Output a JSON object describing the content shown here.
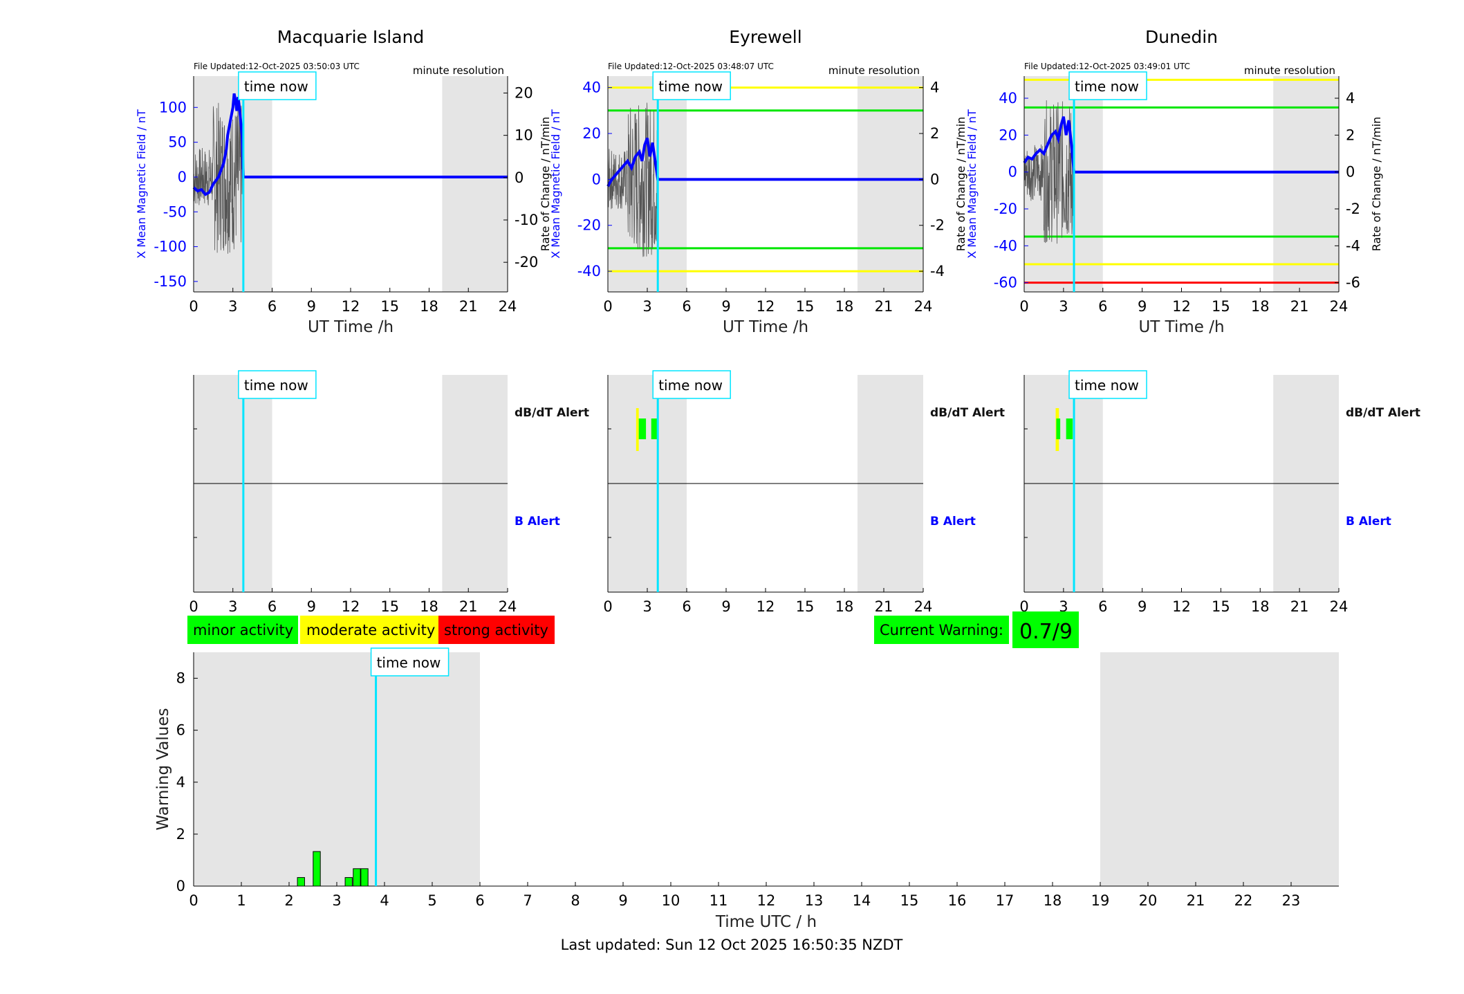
{
  "footer": {
    "last_updated": "Last updated: Sun 12 Oct 2025 16:50:35 NZDT"
  },
  "colors": {
    "x_field": "#0000ff",
    "rate_trace": "#555555",
    "now_line": "#00e5ff",
    "shade": "#e5e5e5",
    "minor": "#00ff00",
    "moderate": "#ffff00",
    "strong": "#ff0000"
  },
  "legend": {
    "minor": "minor activity",
    "moderate": "moderate activity",
    "strong": "strong activity"
  },
  "current_warning": {
    "label": "Current Warning:",
    "value": "0.7/9"
  },
  "chart_data": [
    {
      "type": "line",
      "title": "Macquarie Island",
      "file_updated": "File Updated:12-Oct-2025 03:50:03 UTC",
      "resolution": "minute resolution",
      "xlabel": "UT Time /h",
      "ylabel_left": "X Mean Magnetic Field / nT",
      "ylabel_right": "Rate of Change / nT/min",
      "xlim": [
        0,
        24
      ],
      "ylim_left": [
        -165,
        145
      ],
      "ylim_right": [
        -27,
        24
      ],
      "xticks": [
        0,
        3,
        6,
        9,
        12,
        15,
        18,
        21,
        24
      ],
      "yticks_left": [
        -150,
        -100,
        -50,
        0,
        50,
        100
      ],
      "yticks_right": [
        -20,
        -10,
        0,
        10,
        20
      ],
      "shaded": [
        [
          0,
          6
        ],
        [
          19,
          24
        ]
      ],
      "time_now": 3.8,
      "time_now_label": "time now",
      "thresholds": [],
      "series": [
        {
          "x": [
            0,
            0.3,
            0.6,
            0.9,
            1.2,
            1.5,
            1.7,
            1.9,
            2.1,
            2.3,
            2.5,
            2.6,
            2.7,
            2.8,
            2.9,
            3.0,
            3.1,
            3.2,
            3.3,
            3.4,
            3.5,
            3.6,
            3.7,
            3.8,
            4.2,
            24
          ],
          "y": [
            -15,
            -20,
            -18,
            -25,
            -22,
            -10,
            -5,
            0,
            10,
            20,
            40,
            60,
            70,
            80,
            90,
            100,
            120,
            110,
            95,
            115,
            100,
            80,
            60,
            0,
            0,
            0
          ]
        }
      ]
    },
    {
      "type": "line",
      "title": "Eyrewell",
      "file_updated": "File Updated:12-Oct-2025 03:48:07 UTC",
      "resolution": "minute resolution",
      "xlabel": "UT Time /h",
      "ylabel_left": "X Mean Magnetic Field / nT",
      "ylabel_right": "Rate of Change / nT/min",
      "xlim": [
        0,
        24
      ],
      "ylim_left": [
        -49,
        45
      ],
      "ylim_right": [
        -4.9,
        4.5
      ],
      "xticks": [
        0,
        3,
        6,
        9,
        12,
        15,
        18,
        21,
        24
      ],
      "yticks_left": [
        -40,
        -20,
        0,
        20,
        40
      ],
      "yticks_right": [
        -4,
        -2,
        0,
        2,
        4
      ],
      "shaded": [
        [
          0,
          6
        ],
        [
          19,
          24
        ]
      ],
      "time_now": 3.8,
      "time_now_label": "time now",
      "thresholds": [
        {
          "value": 40,
          "color": "#ffff00"
        },
        {
          "value": 30,
          "color": "#00e600"
        },
        {
          "value": -30,
          "color": "#00e600"
        },
        {
          "value": -40,
          "color": "#ffff00"
        }
      ],
      "series": [
        {
          "x": [
            0,
            0.3,
            0.6,
            0.9,
            1.2,
            1.5,
            1.8,
            2.1,
            2.4,
            2.6,
            2.8,
            3.0,
            3.2,
            3.4,
            3.6,
            3.8,
            4.2,
            24
          ],
          "y": [
            -3,
            0,
            2,
            4,
            6,
            8,
            5,
            10,
            12,
            8,
            15,
            18,
            10,
            16,
            8,
            0,
            0,
            0
          ]
        }
      ]
    },
    {
      "type": "line",
      "title": "Dunedin",
      "file_updated": "File Updated:12-Oct-2025 03:49:01 UTC",
      "resolution": "minute resolution",
      "xlabel": "UT Time /h",
      "ylabel_left": "X Mean Magnetic Field / nT",
      "ylabel_right": "Rate of Change / nT/min",
      "xlim": [
        0,
        24
      ],
      "ylim_left": [
        -65,
        52
      ],
      "ylim_right": [
        -6.5,
        5.2
      ],
      "xticks": [
        0,
        3,
        6,
        9,
        12,
        15,
        18,
        21,
        24
      ],
      "yticks_left": [
        -60,
        -40,
        -20,
        0,
        20,
        40
      ],
      "yticks_right": [
        -6,
        -4,
        -2,
        0,
        2,
        4
      ],
      "shaded": [
        [
          0,
          6
        ],
        [
          19,
          24
        ]
      ],
      "time_now": 3.8,
      "time_now_label": "time now",
      "thresholds": [
        {
          "value": 50,
          "color": "#ffff00"
        },
        {
          "value": 35,
          "color": "#00e600"
        },
        {
          "value": -35,
          "color": "#00e600"
        },
        {
          "value": -50,
          "color": "#ffff00"
        },
        {
          "value": -60,
          "color": "#ff0000"
        }
      ],
      "series": [
        {
          "x": [
            0,
            0.3,
            0.6,
            0.9,
            1.2,
            1.5,
            1.8,
            2.1,
            2.4,
            2.6,
            2.8,
            3.0,
            3.2,
            3.4,
            3.6,
            3.8,
            4.2,
            24
          ],
          "y": [
            5,
            8,
            7,
            10,
            12,
            10,
            15,
            20,
            22,
            18,
            25,
            30,
            20,
            28,
            15,
            0,
            0,
            0
          ]
        }
      ]
    },
    {
      "type": "bar",
      "title": "",
      "xlabel": "",
      "alert_labels": [
        "dB/dT Alert",
        "B Alert"
      ],
      "xlim": [
        0,
        24
      ],
      "xticks": [
        0,
        3,
        6,
        9,
        12,
        15,
        18,
        21,
        24
      ],
      "shaded": [
        [
          0,
          6
        ],
        [
          19,
          24
        ]
      ],
      "time_now": 3.8,
      "time_now_label": "time now",
      "alerts": []
    },
    {
      "type": "bar",
      "title": "",
      "xlabel": "",
      "alert_labels": [
        "dB/dT Alert",
        "B Alert"
      ],
      "xlim": [
        0,
        24
      ],
      "xticks": [
        0,
        3,
        6,
        9,
        12,
        15,
        18,
        21,
        24
      ],
      "shaded": [
        [
          0,
          6
        ],
        [
          19,
          24
        ]
      ],
      "time_now": 3.8,
      "time_now_label": "time now",
      "alerts": [
        {
          "start": 2.15,
          "end": 2.35,
          "level": "moderate"
        },
        {
          "start": 2.35,
          "end": 2.9,
          "level": "minor"
        },
        {
          "start": 3.3,
          "end": 3.85,
          "level": "minor"
        }
      ]
    },
    {
      "type": "bar",
      "title": "",
      "xlabel": "",
      "alert_labels": [
        "dB/dT Alert",
        "B Alert"
      ],
      "xlim": [
        0,
        24
      ],
      "xticks": [
        0,
        3,
        6,
        9,
        12,
        15,
        18,
        21,
        24
      ],
      "shaded": [
        [
          0,
          6
        ],
        [
          19,
          24
        ]
      ],
      "time_now": 3.8,
      "time_now_label": "time now",
      "alerts": [
        {
          "start": 2.4,
          "end": 2.65,
          "level": "moderate"
        },
        {
          "start": 2.45,
          "end": 2.75,
          "level": "minor"
        },
        {
          "start": 3.2,
          "end": 3.7,
          "level": "minor"
        }
      ]
    },
    {
      "type": "bar",
      "title": "",
      "xlabel": "Time UTC / h",
      "ylabel": "Warning Values",
      "xlim": [
        0,
        24
      ],
      "ylim": [
        0,
        9
      ],
      "xticks": [
        0,
        1,
        2,
        3,
        4,
        5,
        6,
        7,
        8,
        9,
        10,
        11,
        12,
        13,
        14,
        15,
        16,
        17,
        18,
        19,
        20,
        21,
        22,
        23
      ],
      "yticks": [
        0,
        2,
        4,
        6,
        8
      ],
      "shaded": [
        [
          0,
          6
        ],
        [
          19,
          24
        ]
      ],
      "time_now": 3.82,
      "time_now_label": "time now",
      "bars": [
        {
          "x": 2.25,
          "value": 0.33
        },
        {
          "x": 2.58,
          "value": 1.33
        },
        {
          "x": 3.25,
          "value": 0.33
        },
        {
          "x": 3.42,
          "value": 0.67
        },
        {
          "x": 3.58,
          "value": 0.67
        }
      ],
      "bar_width": 0.15
    }
  ]
}
